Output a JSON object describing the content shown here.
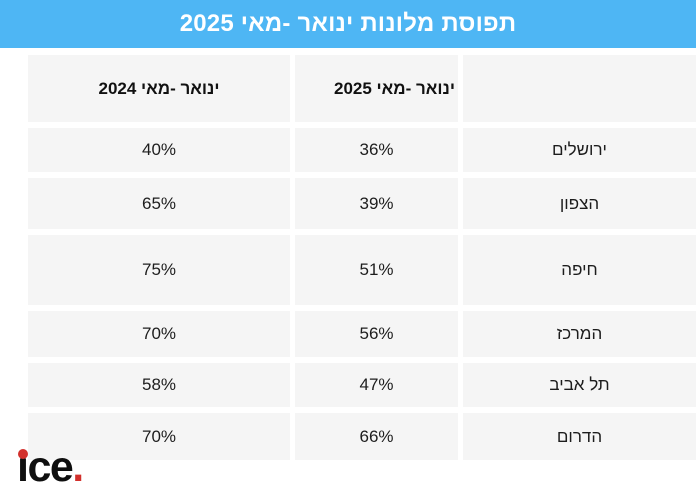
{
  "banner": {
    "title": "תפוסת מלונות ינואר -מאי 2025"
  },
  "table": {
    "col_headers": {
      "y2024": "ינואר -מאי 2024",
      "y2025": "ינואר -מאי 2025",
      "region": ""
    },
    "rows": [
      {
        "region": "ירושלים",
        "y2025": "36%",
        "y2024": "40%"
      },
      {
        "region": "הצפון",
        "y2025": "39%",
        "y2024": "65%"
      },
      {
        "region": "חיפה",
        "y2025": "51%",
        "y2024": "75%"
      },
      {
        "region": "המרכז",
        "y2025": "56%",
        "y2024": "70%"
      },
      {
        "region": "תל אביב",
        "y2025": "47%",
        "y2024": "58%"
      },
      {
        "region": "הדרום",
        "y2025": "66%",
        "y2024": "70%"
      }
    ]
  },
  "logo": {
    "text": "ice.",
    "display_i": "ı",
    "display_ce": "ce",
    "period": "."
  },
  "colors": {
    "banner_blue": "#4eb6f4",
    "cell_gray": "#f5f5f5",
    "logo_red": "#d2302c",
    "text_dark": "#1d1d1d"
  },
  "chart_data": {
    "type": "table",
    "title": "תפוסת מלונות ינואר -מאי 2025",
    "categories": [
      "ירושלים",
      "הצפון",
      "חיפה",
      "המרכז",
      "תל אביב",
      "הדרום"
    ],
    "series": [
      {
        "name": "ינואר -מאי 2025",
        "unit": "%",
        "values": [
          36,
          39,
          51,
          56,
          47,
          66
        ]
      },
      {
        "name": "ינואר -מאי 2024",
        "unit": "%",
        "values": [
          40,
          65,
          75,
          70,
          58,
          70
        ]
      }
    ],
    "layout": {
      "direction": "rtl",
      "columns_order_right_to_left": [
        "region",
        "ינואר -מאי 2025",
        "ינואר -מאי 2024"
      ]
    }
  }
}
